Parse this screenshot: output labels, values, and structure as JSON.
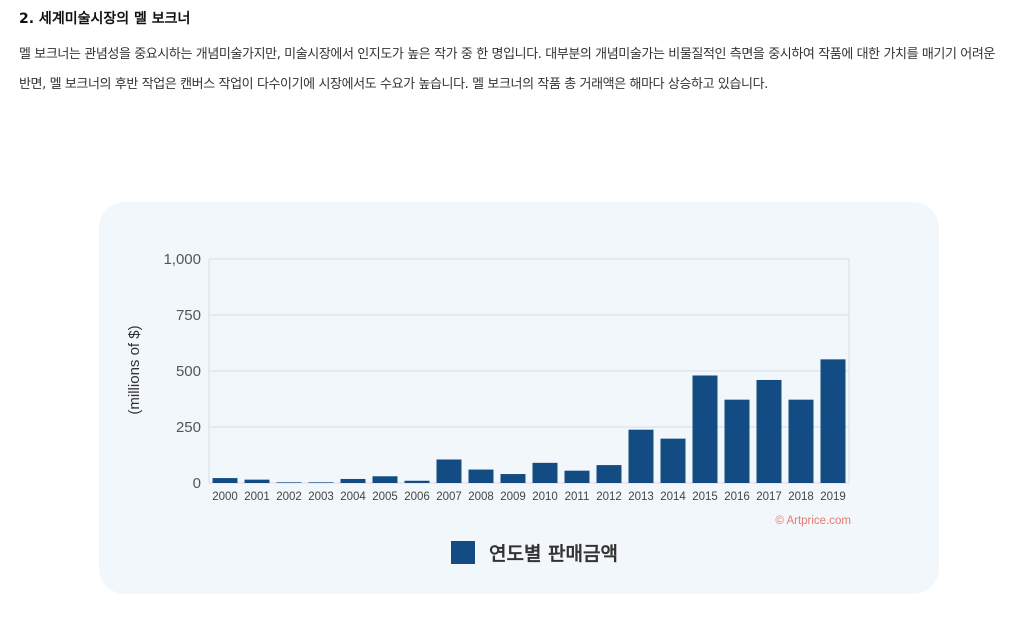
{
  "section": {
    "heading": "2. 세계미술시장의 멜 보크너",
    "paragraph": "멜 보크너는 관념성을 중요시하는 개념미술가지만, 미술시장에서 인지도가 높은 작가 중 한 명입니다. 대부분의 개념미술가는 비물질적인 측면을 중시하여 작품에 대한 가치를 매기기 어려운 반면, 멜 보크너의 후반 작업은 캔버스 작업이 다수이기에 시장에서도 수요가 높습니다. 멜 보크너의 작품 총 거래액은 해마다 상승하고 있습니다."
  },
  "colors": {
    "bar": "#124c82",
    "card_background": "#f2f7fb",
    "source_text": "#e57a6e",
    "grid": "#d5dde8"
  },
  "chart_data": {
    "type": "bar",
    "categories": [
      "2000",
      "2001",
      "2002",
      "2003",
      "2004",
      "2005",
      "2006",
      "2007",
      "2008",
      "2009",
      "2010",
      "2011",
      "2012",
      "2013",
      "2014",
      "2015",
      "2016",
      "2017",
      "2018",
      "2019"
    ],
    "series": [
      {
        "name": "연도별 판매금액",
        "values": [
          22,
          15,
          3,
          3,
          18,
          30,
          10,
          105,
          60,
          40,
          90,
          55,
          80,
          238,
          198,
          480,
          372,
          460,
          372,
          552
        ]
      }
    ],
    "ylabel": "(millions of $)",
    "ylim": [
      0,
      1000
    ],
    "yticks": [
      0,
      250,
      500,
      750,
      1000
    ],
    "ytick_labels": [
      "0",
      "250",
      "500",
      "750",
      "1,000"
    ],
    "source": "© Artprice.com",
    "grid": true,
    "legend_position": "bottom-center"
  }
}
